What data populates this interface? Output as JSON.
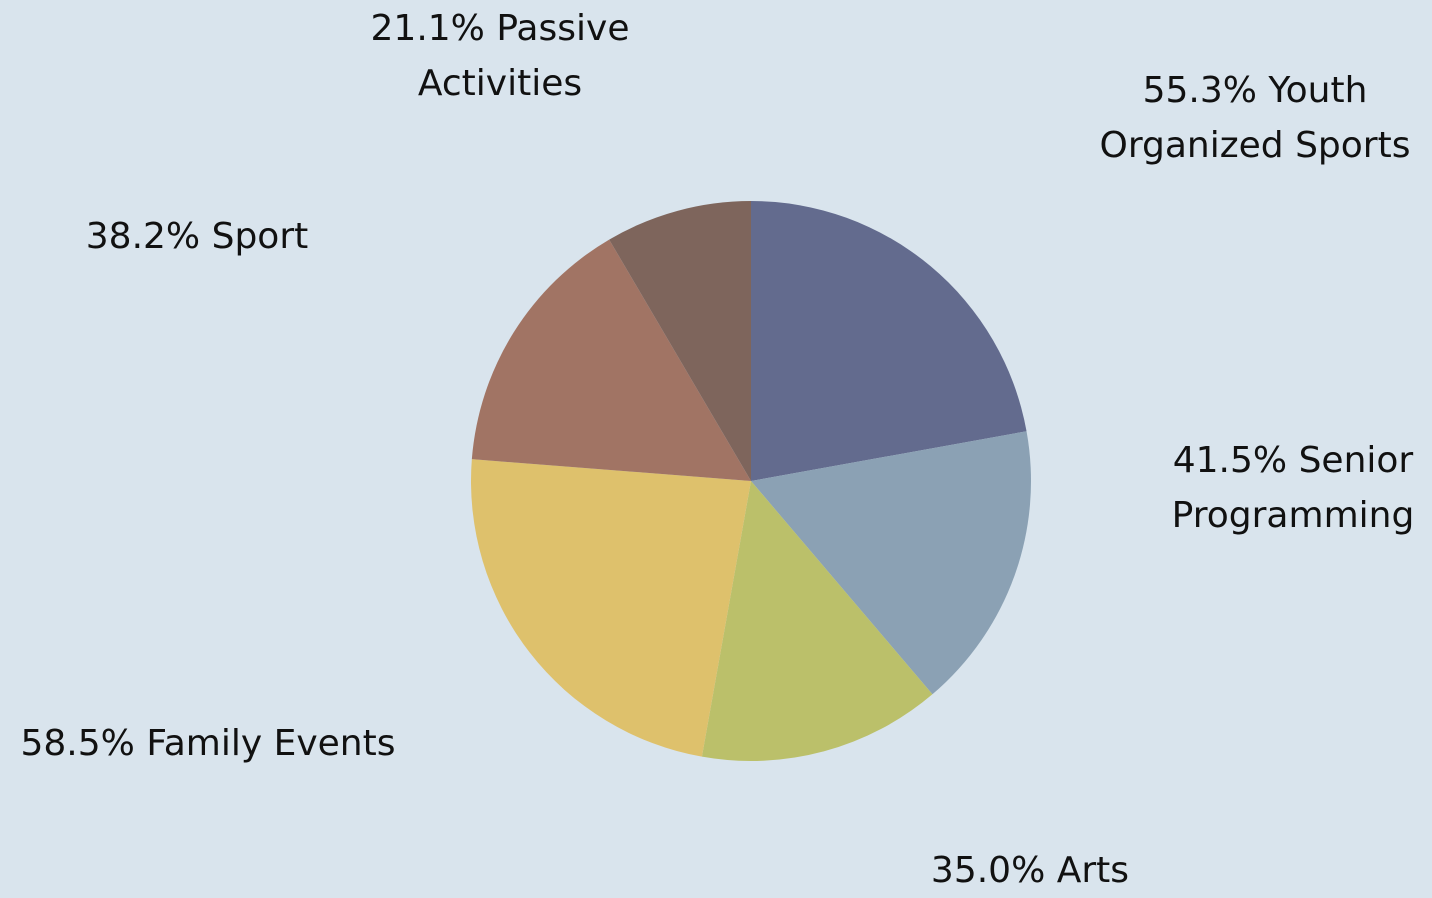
{
  "chart_data": {
    "type": "pie",
    "categories": [
      "Youth Organized Sports",
      "Senior Programming",
      "Arts",
      "Family Events",
      "Sport",
      "Passive Activities"
    ],
    "values": [
      55.3,
      41.5,
      35.0,
      58.5,
      38.2,
      21.1
    ],
    "value_labels": [
      "55.3%",
      "41.5%",
      "35.0%",
      "58.5%",
      "38.2%",
      "21.1%"
    ],
    "colors": [
      "#636b8e",
      "#8ba1b4",
      "#bbc06a",
      "#dec16c",
      "#a17464",
      "#7e655c"
    ]
  }
}
